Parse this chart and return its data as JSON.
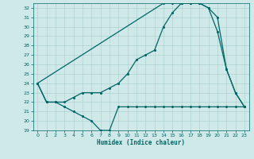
{
  "xlabel": "Humidex (Indice chaleur)",
  "background_color": "#cfe8e8",
  "line_color": "#006666",
  "ylim": [
    19,
    32.5
  ],
  "xlim": [
    -0.5,
    23.5
  ],
  "yticks": [
    19,
    20,
    21,
    22,
    23,
    24,
    25,
    26,
    27,
    28,
    29,
    30,
    31,
    32
  ],
  "xticks": [
    0,
    1,
    2,
    3,
    4,
    5,
    6,
    7,
    8,
    9,
    10,
    11,
    12,
    13,
    14,
    15,
    16,
    17,
    18,
    19,
    20,
    21,
    22,
    23
  ],
  "series1": {
    "x": [
      0,
      1,
      2,
      3,
      4,
      5,
      6,
      7,
      8,
      9,
      10,
      11,
      12,
      13,
      14,
      15,
      16,
      17,
      18,
      19,
      20,
      21,
      22,
      23
    ],
    "y": [
      24,
      22,
      22,
      21.5,
      21,
      20.5,
      20,
      19,
      19,
      21.5,
      21.5,
      21.5,
      21.5,
      21.5,
      21.5,
      21.5,
      21.5,
      21.5,
      21.5,
      21.5,
      21.5,
      21.5,
      21.5,
      21.5
    ]
  },
  "series2": {
    "x": [
      0,
      1,
      2,
      3,
      4,
      5,
      6,
      7,
      8,
      9,
      10,
      11,
      12,
      13,
      14,
      15,
      16,
      17,
      18,
      19,
      20,
      21,
      22,
      23
    ],
    "y": [
      24,
      22,
      22,
      22,
      22.5,
      23,
      23,
      23,
      23.5,
      24,
      25,
      26.5,
      27,
      27.5,
      30,
      31.5,
      32.5,
      32.5,
      32.5,
      32,
      29.5,
      25.5,
      23,
      21.5
    ]
  },
  "series3": {
    "x": [
      0,
      14,
      15,
      16,
      17,
      18,
      19,
      20,
      21,
      22,
      23
    ],
    "y": [
      24,
      32.5,
      32.5,
      32.5,
      32.5,
      32.5,
      32,
      31,
      25.5,
      23,
      21.5
    ]
  }
}
